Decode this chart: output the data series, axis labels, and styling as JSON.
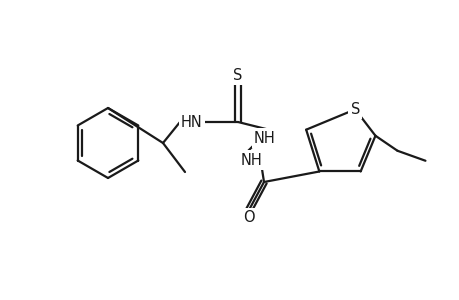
{
  "background_color": "#ffffff",
  "line_color": "#1a1a1a",
  "line_width": 1.6,
  "font_size": 10.5,
  "figsize": [
    4.6,
    3.0
  ],
  "dpi": 100,
  "S_thioamide_label": "S",
  "S_thiophene_label": "S",
  "O_label": "O",
  "HN_left_label": "HN",
  "NH_right_label": "NH",
  "NH2_label": "NH"
}
